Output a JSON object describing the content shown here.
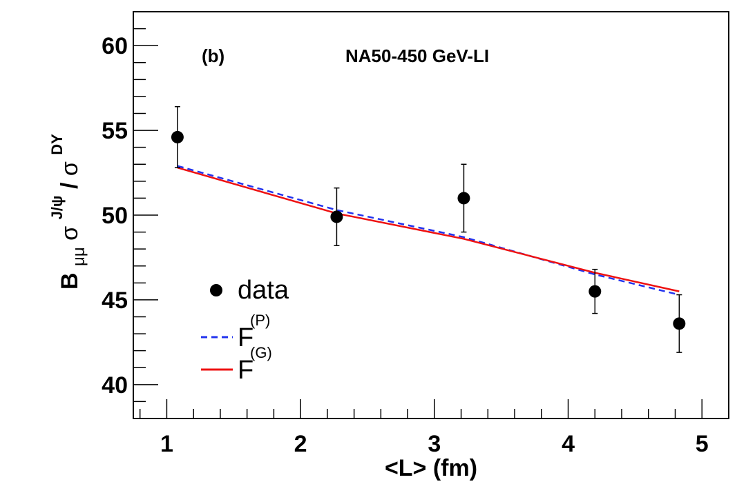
{
  "chart_data": {
    "type": "line",
    "title": "NA50-450 GeV-LI",
    "panel_label": "(b)",
    "xlabel": "<L> (fm)",
    "ylabel": {
      "main": "B",
      "main_sub": "μμ",
      "numerator": "σ",
      "numerator_sup": "J/ψ",
      "slash": "/",
      "denominator": "σ",
      "denominator_sup": "DY"
    },
    "xlim": [
      0.75,
      5.2
    ],
    "ylim": [
      38.0,
      62.0
    ],
    "x_ticks": [
      1,
      2,
      3,
      4,
      5
    ],
    "y_ticks": [
      40,
      45,
      50,
      55,
      60
    ],
    "x_tick_labels": [
      "1",
      "2",
      "3",
      "4",
      "5"
    ],
    "y_tick_labels": [
      "40",
      "45",
      "50",
      "55",
      "60"
    ],
    "series": [
      {
        "name": "data",
        "kind": "points",
        "color": "#000000",
        "x": [
          1.08,
          2.27,
          3.22,
          4.2,
          4.83
        ],
        "y": [
          54.6,
          49.9,
          51.0,
          45.5,
          43.6
        ],
        "yerr": [
          1.8,
          1.7,
          2.0,
          1.3,
          1.7
        ]
      },
      {
        "name": "F",
        "sup": "(P)",
        "kind": "dashed",
        "color": "#2233ee",
        "x": [
          1.08,
          2.27,
          3.22,
          4.2,
          4.83
        ],
        "y": [
          52.9,
          50.3,
          48.7,
          46.5,
          45.3
        ]
      },
      {
        "name": "F",
        "sup": "(G)",
        "kind": "solid",
        "color": "#ee1111",
        "x": [
          1.08,
          2.27,
          3.22,
          4.2,
          4.83
        ],
        "y": [
          52.8,
          50.1,
          48.6,
          46.6,
          45.5
        ]
      }
    ],
    "legend": {
      "position": "bottom-left",
      "entries": [
        {
          "label": "data",
          "sup": ""
        },
        {
          "label": "F",
          "sup": "(P)"
        },
        {
          "label": "F",
          "sup": "(G)"
        }
      ]
    }
  }
}
